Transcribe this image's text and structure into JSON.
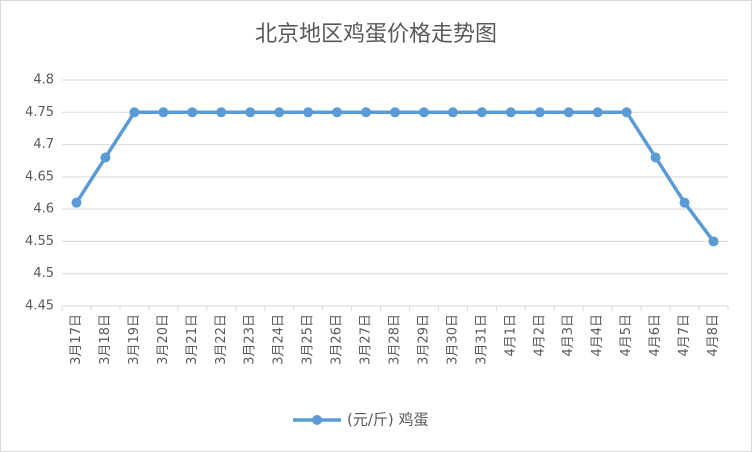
{
  "chart_data": {
    "type": "line",
    "title": "北京地区鸡蛋价格走势图",
    "categories": [
      "3月17日",
      "3月18日",
      "3月19日",
      "3月20日",
      "3月21日",
      "3月22日",
      "3月23日",
      "3月24日",
      "3月25日",
      "3月26日",
      "3月27日",
      "3月28日",
      "3月29日",
      "3月30日",
      "3月31日",
      "4月1日",
      "4月2日",
      "4月3日",
      "4月4日",
      "4月5日",
      "4月6日",
      "4月7日",
      "4月8日"
    ],
    "series": [
      {
        "name": "(元/斤) 鸡蛋",
        "color": "#5b9bd5",
        "values": [
          4.61,
          4.68,
          4.75,
          4.75,
          4.75,
          4.75,
          4.75,
          4.75,
          4.75,
          4.75,
          4.75,
          4.75,
          4.75,
          4.75,
          4.75,
          4.75,
          4.75,
          4.75,
          4.75,
          4.75,
          4.68,
          4.61,
          4.55
        ]
      }
    ],
    "ylim": [
      4.45,
      4.8
    ],
    "yticks": [
      4.45,
      4.5,
      4.55,
      4.6,
      4.65,
      4.7,
      4.75,
      4.8
    ],
    "grid": true,
    "legend": "bottom"
  }
}
